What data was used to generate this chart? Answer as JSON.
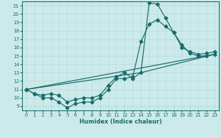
{
  "bg_color": "#cceaea",
  "line_color": "#1a6b6b",
  "xlabel": "Humidex (Indice chaleur)",
  "xlim": [
    -0.5,
    23.5
  ],
  "ylim": [
    8.5,
    21.5
  ],
  "yticks": [
    9,
    10,
    11,
    12,
    13,
    14,
    15,
    16,
    17,
    18,
    19,
    20,
    21
  ],
  "xticks": [
    0,
    1,
    2,
    3,
    4,
    5,
    6,
    7,
    8,
    9,
    10,
    11,
    12,
    13,
    14,
    15,
    16,
    17,
    18,
    19,
    20,
    21,
    22,
    23
  ],
  "line1_x": [
    0,
    1,
    2,
    3,
    4,
    5,
    6,
    7,
    8,
    9,
    10,
    11,
    12,
    13,
    14,
    15,
    16,
    17,
    18,
    19,
    20,
    21,
    22,
    23
  ],
  "line1_y": [
    11,
    10.5,
    10,
    10,
    9.5,
    8.8,
    9.3,
    9.5,
    9.5,
    10,
    11.0,
    12.3,
    12.3,
    12.5,
    16.7,
    18.8,
    19.3,
    18.5,
    17.8,
    16.3,
    15.3,
    15,
    15,
    15.2
  ],
  "line2_x": [
    0,
    1,
    2,
    3,
    4,
    5,
    6,
    7,
    8,
    9,
    10,
    11,
    12,
    13,
    14,
    15,
    16,
    17,
    18,
    19,
    20,
    21,
    22,
    23
  ],
  "line2_y": [
    11,
    10.5,
    10.3,
    10.5,
    10.3,
    9.5,
    9.8,
    10,
    10,
    10.3,
    11.5,
    12.5,
    13.0,
    12.3,
    13.0,
    21.3,
    21.2,
    19.5,
    17.8,
    16.0,
    15.5,
    15.2,
    15.3,
    15.5
  ],
  "line3_x": [
    0,
    14,
    23
  ],
  "line3_y": [
    11,
    13.0,
    15.2
  ],
  "line4_x": [
    0,
    23
  ],
  "line4_y": [
    11,
    15.2
  ]
}
